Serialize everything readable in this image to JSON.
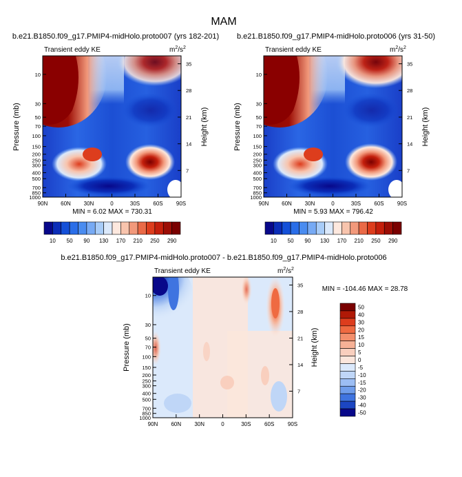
{
  "figure": {
    "title": "MAM"
  },
  "chart_data": [
    {
      "type": "heatmap",
      "title": "b.e21.B1850.f09_g17.PMIP4-midHolo.proto007 (yrs 182-201)",
      "left_label": "Transient eddy KE",
      "units_base": "m",
      "units_sup1": "2",
      "units_mid": "/s",
      "units_sup2": "2",
      "ylabel": "Pressure (mb)",
      "ylabel_right": "Height (km)",
      "x_ticks": [
        "90N",
        "60N",
        "30N",
        "0",
        "30S",
        "60S",
        "90S"
      ],
      "y_ticks": [
        "10",
        "30",
        "50",
        "70",
        "100",
        "150",
        "200",
        "250",
        "300",
        "400",
        "500",
        "700",
        "850",
        "1000"
      ],
      "y_ticks_right": [
        "35",
        "28",
        "21",
        "14",
        "7"
      ],
      "min_max": "MIN =  6.02   MAX = 730.31",
      "colorbar_labels": [
        "10",
        "50",
        "90",
        "130",
        "170",
        "210",
        "250",
        "290"
      ]
    },
    {
      "type": "heatmap",
      "title": "b.e21.B1850.f09_g17.PMIP4-midHolo.proto006 (yrs 31-50)",
      "left_label": "Transient eddy KE",
      "units_base": "m",
      "units_sup1": "2",
      "units_mid": "/s",
      "units_sup2": "2",
      "ylabel": "Pressure (mb)",
      "ylabel_right": "Height (km)",
      "x_ticks": [
        "90N",
        "60N",
        "30N",
        "0",
        "30S",
        "60S",
        "90S"
      ],
      "y_ticks": [
        "10",
        "30",
        "50",
        "70",
        "100",
        "150",
        "200",
        "250",
        "300",
        "400",
        "500",
        "700",
        "850",
        "1000"
      ],
      "y_ticks_right": [
        "35",
        "28",
        "21",
        "14",
        "7"
      ],
      "min_max": "MIN =  5.93   MAX = 796.42",
      "colorbar_labels": [
        "10",
        "50",
        "90",
        "130",
        "170",
        "210",
        "250",
        "290"
      ]
    },
    {
      "type": "heatmap",
      "title": "b.e21.B1850.f09_g17.PMIP4-midHolo.proto007 - b.e21.B1850.f09_g17.PMIP4-midHolo.proto006",
      "left_label": "Transient eddy KE",
      "units_base": "m",
      "units_sup1": "2",
      "units_mid": "/s",
      "units_sup2": "2",
      "ylabel": "Pressure (mb)",
      "ylabel_right": "Height (km)",
      "x_ticks": [
        "90N",
        "60N",
        "30N",
        "0",
        "30S",
        "60S",
        "90S"
      ],
      "y_ticks": [
        "10",
        "30",
        "50",
        "70",
        "100",
        "150",
        "200",
        "250",
        "300",
        "400",
        "500",
        "700",
        "850",
        "1000"
      ],
      "y_ticks_right": [
        "35",
        "28",
        "21",
        "14",
        "7"
      ],
      "min_max": "MIN = -104.46   MAX =  28.78",
      "colorbar_labels": [
        "50",
        "40",
        "30",
        "20",
        "15",
        "10",
        "5",
        "0",
        "-5",
        "-10",
        "-15",
        "-20",
        "-30",
        "-40",
        "-50"
      ]
    }
  ],
  "colors": {
    "seq_scale": [
      "#08088a",
      "#0b2db8",
      "#1450d8",
      "#2a6ee8",
      "#4a8cf0",
      "#77aaf4",
      "#a8ccf8",
      "#dbe9fb",
      "#fde8de",
      "#f8c4ad",
      "#f2997b",
      "#ea6a47",
      "#dd3d1d",
      "#c41f0c",
      "#9c0d05",
      "#7a0000"
    ],
    "diff_scale": [
      "#7a0000",
      "#b01906",
      "#dd3d1d",
      "#ef6a41",
      "#f38f6c",
      "#f6b196",
      "#f9cfbe",
      "#fbe6dc",
      "#dbe9fb",
      "#bfd6f7",
      "#9cbef4",
      "#6f9deb",
      "#3f74e0",
      "#1c46c2",
      "#08088a"
    ]
  }
}
